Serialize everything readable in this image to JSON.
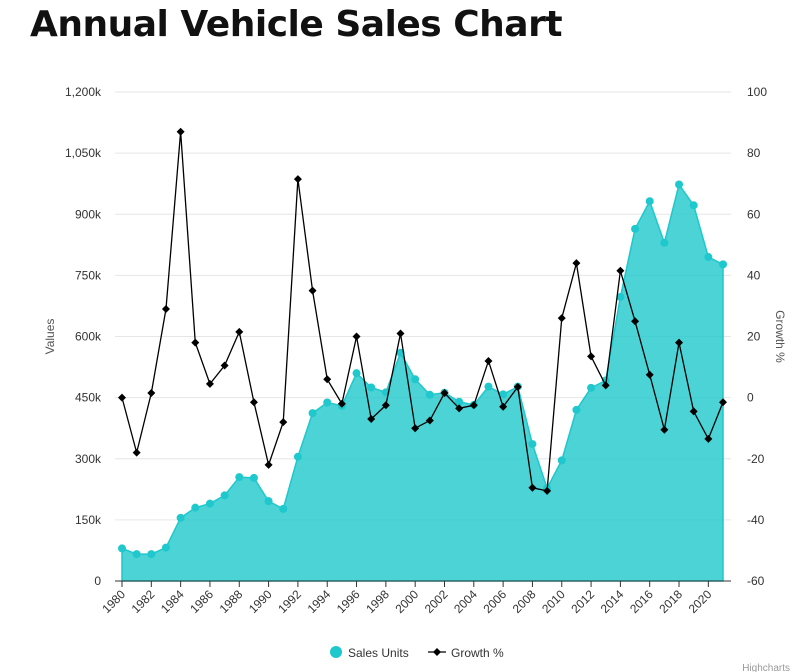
{
  "page": {
    "title": "Annual Vehicle Sales Chart",
    "credit": "Highcharts"
  },
  "chart_data": {
    "type": "area",
    "colors": {
      "area": "#1ec8cc",
      "line": "#000000",
      "grid": "#e6e6e6"
    },
    "grid": true,
    "legend_position": "bottom-center",
    "x": [
      1980,
      1981,
      1982,
      1983,
      1984,
      1985,
      1986,
      1987,
      1988,
      1989,
      1990,
      1991,
      1992,
      1993,
      1994,
      1995,
      1996,
      1997,
      1998,
      1999,
      2000,
      2001,
      2002,
      2003,
      2004,
      2005,
      2006,
      2007,
      2008,
      2009,
      2010,
      2011,
      2012,
      2013,
      2014,
      2015,
      2016,
      2017,
      2018,
      2019,
      2020,
      2021
    ],
    "x_ticks": [
      "1980",
      "1982",
      "1984",
      "1986",
      "1988",
      "1990",
      "1992",
      "1994",
      "1996",
      "1998",
      "2000",
      "2002",
      "2004",
      "2006",
      "2008",
      "2010",
      "2012",
      "2014",
      "2016",
      "2018",
      "2020"
    ],
    "y_left": {
      "label": "Values",
      "min": 0,
      "max": 1200000,
      "ticks": [
        "0",
        "150k",
        "300k",
        "450k",
        "600k",
        "750k",
        "900k",
        "1,050k",
        "1,200k"
      ]
    },
    "y_right": {
      "label": "Growth %",
      "min": -60,
      "max": 100,
      "ticks": [
        "-60",
        "-40",
        "-20",
        "0",
        "20",
        "40",
        "60",
        "80",
        "100"
      ]
    },
    "series": [
      {
        "name": "Sales Units",
        "type": "area",
        "axis": "left",
        "values": [
          80000,
          66000,
          66000,
          82000,
          155000,
          180000,
          190000,
          210000,
          255000,
          253000,
          196000,
          177000,
          305000,
          412000,
          438000,
          430000,
          510000,
          475000,
          463000,
          560000,
          495000,
          457000,
          462000,
          440000,
          432000,
          477000,
          458000,
          477000,
          336000,
          228000,
          296000,
          420000,
          474000,
          492000,
          697000,
          864000,
          932000,
          830000,
          973000,
          922000,
          795000,
          777000
        ]
      },
      {
        "name": "Growth %",
        "type": "line",
        "axis": "right",
        "values": [
          0,
          -18,
          1.5,
          29,
          87,
          18,
          4.5,
          10.5,
          21.5,
          -1.5,
          -22,
          -8,
          71.5,
          35,
          6,
          -2,
          20,
          -7,
          -2.5,
          21,
          -10,
          -7.5,
          1.5,
          -3.5,
          -2.5,
          12,
          -3,
          3.5,
          -29.5,
          -30.5,
          26,
          44,
          13.5,
          4,
          41.5,
          25,
          7.5,
          -10.5,
          18,
          -4.5,
          -13.5,
          -1.5
        ]
      }
    ]
  }
}
